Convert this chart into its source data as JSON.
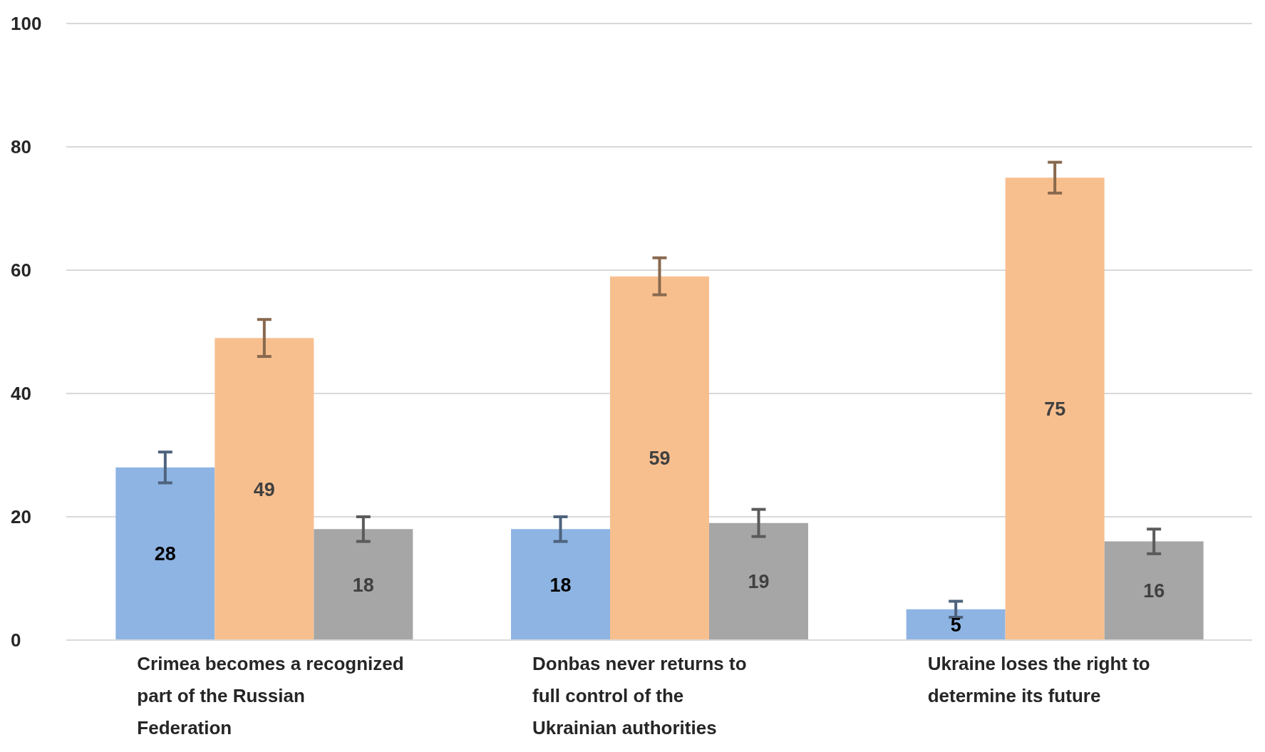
{
  "chart_data": {
    "type": "bar",
    "categories": [
      "Crimea becomes a recognized part of the Russian Federation",
      "Donbas never returns to full control of the Ukrainian authorities",
      "Ukraine loses the right to determine its future"
    ],
    "series": [
      {
        "color": "#8eb4e3",
        "values": [
          28,
          18,
          5
        ],
        "errors": [
          2.5,
          2,
          1.3
        ]
      },
      {
        "color": "#f8bf8e",
        "values": [
          49,
          59,
          75
        ],
        "errors": [
          3,
          3,
          2.5
        ]
      },
      {
        "color": "#a6a6a6",
        "values": [
          18,
          19,
          16
        ],
        "errors": [
          2,
          2.2,
          2
        ]
      }
    ],
    "ylim": [
      0,
      100
    ],
    "yticks": [
      0,
      20,
      40,
      60,
      80,
      100
    ],
    "grid": "y",
    "legend": false,
    "data_labels": true
  }
}
